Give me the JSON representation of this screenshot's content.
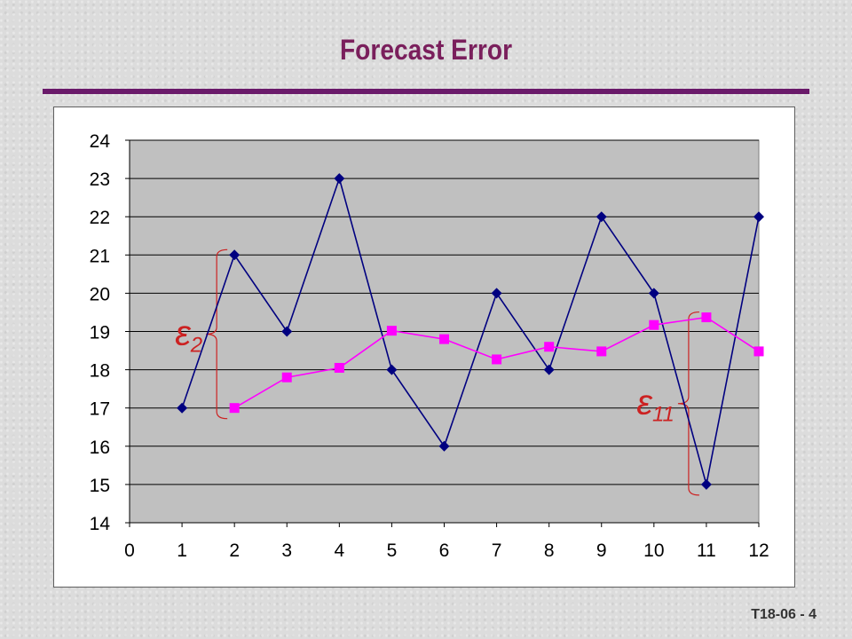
{
  "slide": {
    "title": "Forecast Error",
    "number": "T18-06 - 4"
  },
  "colors": {
    "title": "#7a1f5c",
    "rule": "#6a1a6a",
    "plot_bg": "#c0c0c0",
    "actual": "#000080",
    "forecast": "#ff00ff",
    "annotation": "#cc2222"
  },
  "chart_data": {
    "type": "line",
    "x": [
      0,
      1,
      2,
      3,
      4,
      5,
      6,
      7,
      8,
      9,
      10,
      11,
      12
    ],
    "xlim": [
      0,
      12
    ],
    "ylim": [
      14,
      24
    ],
    "xticks": [
      "0",
      "1",
      "2",
      "3",
      "4",
      "5",
      "6",
      "7",
      "8",
      "9",
      "10",
      "11",
      "12"
    ],
    "yticks": [
      "14",
      "15",
      "16",
      "17",
      "18",
      "19",
      "20",
      "21",
      "22",
      "23",
      "24"
    ],
    "grid": "horizontal",
    "legend": "none",
    "series": [
      {
        "marker": "diamond",
        "color": "#000080",
        "points": [
          [
            1,
            17
          ],
          [
            2,
            21
          ],
          [
            3,
            19
          ],
          [
            4,
            23
          ],
          [
            5,
            18
          ],
          [
            6,
            16
          ],
          [
            7,
            20
          ],
          [
            8,
            18
          ],
          [
            9,
            22
          ],
          [
            10,
            20
          ],
          [
            11,
            15
          ],
          [
            12,
            22
          ]
        ]
      },
      {
        "marker": "square",
        "color": "#ff00ff",
        "points": [
          [
            2,
            17
          ],
          [
            3,
            17.8
          ],
          [
            4,
            18.05
          ],
          [
            5,
            19.02
          ],
          [
            6,
            18.8
          ],
          [
            7,
            18.27
          ],
          [
            8,
            18.6
          ],
          [
            9,
            18.48
          ],
          [
            10,
            19.17
          ],
          [
            11,
            19.37
          ],
          [
            12,
            18.48
          ]
        ]
      }
    ],
    "annotations": [
      {
        "symbol": "ε",
        "subscript": "2",
        "x": 2,
        "y_from": 17,
        "y_to": 21
      },
      {
        "symbol": "ε",
        "subscript": "11",
        "x": 11,
        "y_from": 15,
        "y_to": 19.37
      }
    ]
  }
}
